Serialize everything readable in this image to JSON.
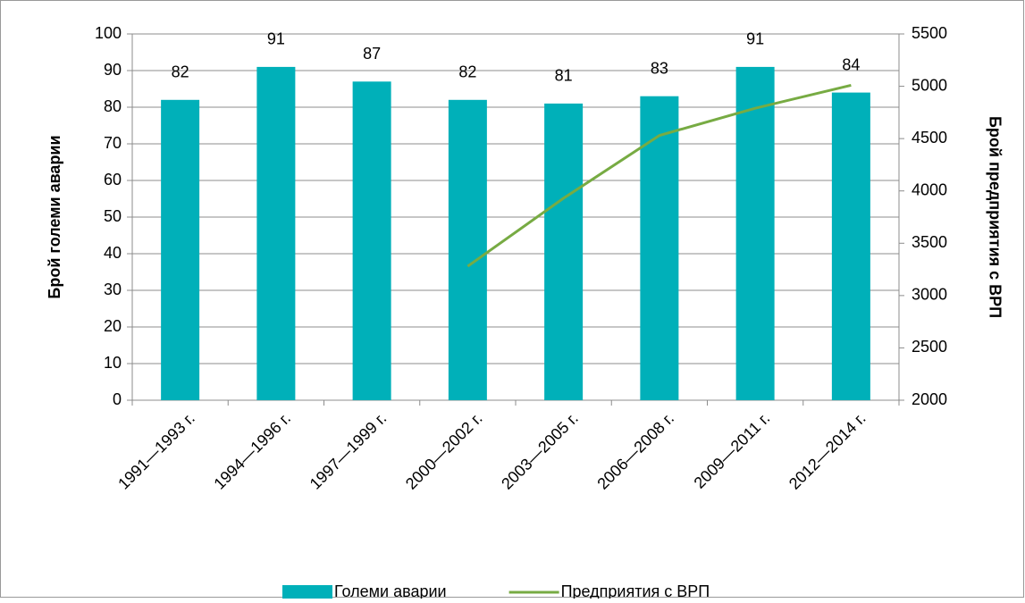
{
  "chart_data": {
    "type": "bar",
    "categories": [
      "1991—1993 г.",
      "1994—1996 г.",
      "1997—1999 г.",
      "2000—2002 г.",
      "2003—2005 г.",
      "2006—2008 г.",
      "2009—2011 г.",
      "2012—2014 г."
    ],
    "series": [
      {
        "name": "Големи аварии",
        "type": "bar",
        "color": "#00b0b9",
        "values": [
          82,
          91,
          87,
          82,
          81,
          83,
          91,
          84
        ]
      },
      {
        "name": "Предприятия с ВРП",
        "type": "line",
        "axis": "y2",
        "color": "#77ab43",
        "values": [
          null,
          null,
          null,
          3280,
          3930,
          4530,
          4790,
          5010
        ]
      }
    ],
    "ylabel": "Брой големи аварии",
    "y2label": "Брой предприятия с ВРП",
    "ylim": [
      0,
      100
    ],
    "yticks": [
      0,
      10,
      20,
      30,
      40,
      50,
      60,
      70,
      80,
      90,
      100
    ],
    "y2lim": [
      2000,
      5500
    ],
    "y2ticks": [
      2000,
      2500,
      3000,
      3500,
      4000,
      4500,
      5000,
      5500
    ],
    "grid": true,
    "legend": "bottom"
  }
}
